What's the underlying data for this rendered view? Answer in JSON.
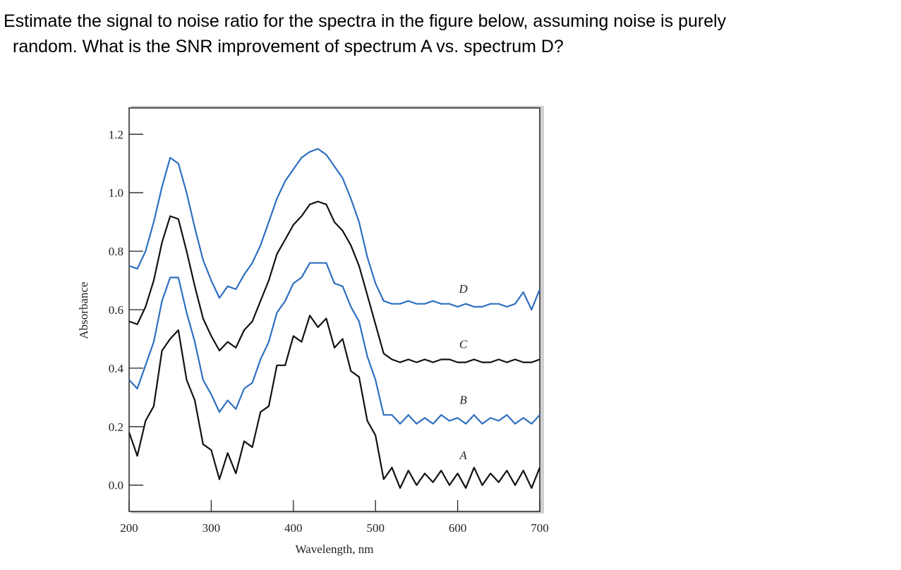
{
  "question": [
    "Estimate the signal to noise ratio for the spectra in the figure below, assuming noise is purely",
    "random. What is the SNR improvement of spectrum A vs. spectrum D?"
  ],
  "chart_data": {
    "type": "line",
    "xlabel": "Wavelength, nm",
    "ylabel": "Absorbance",
    "x": [
      200,
      210,
      220,
      230,
      240,
      250,
      260,
      270,
      280,
      290,
      300,
      310,
      320,
      330,
      340,
      350,
      360,
      370,
      380,
      390,
      400,
      410,
      420,
      430,
      440,
      450,
      460,
      470,
      480,
      490,
      500,
      510,
      520,
      530,
      540,
      550,
      560,
      570,
      580,
      590,
      600,
      610,
      620,
      630,
      640,
      650,
      660,
      670,
      680,
      690,
      700
    ],
    "xlim": [
      200,
      700
    ],
    "xticks": [
      200,
      300,
      400,
      500,
      600,
      700
    ],
    "ylim": [
      -0.09,
      1.29
    ],
    "yticks": [
      {
        "value": 0,
        "label": "0.0"
      },
      0.2,
      0.4,
      0.6,
      0.8,
      {
        "value": 1,
        "label": "1.0"
      },
      1.2
    ],
    "series": [
      {
        "name": "A",
        "color": "#111111",
        "values": [
          0.18,
          0.1,
          0.22,
          0.27,
          0.46,
          0.5,
          0.53,
          0.36,
          0.29,
          0.14,
          0.12,
          0.02,
          0.11,
          0.04,
          0.15,
          0.13,
          0.25,
          0.27,
          0.41,
          0.41,
          0.51,
          0.49,
          0.58,
          0.54,
          0.57,
          0.47,
          0.5,
          0.39,
          0.37,
          0.22,
          0.17,
          0.02,
          0.06,
          -0.01,
          0.05,
          0.0,
          0.04,
          0.01,
          0.05,
          0.0,
          0.04,
          -0.01,
          0.06,
          0.0,
          0.04,
          0.01,
          0.05,
          0.0,
          0.05,
          -0.01,
          0.06
        ]
      },
      {
        "name": "B",
        "color": "#2e6fc0",
        "values": [
          0.36,
          0.33,
          0.41,
          0.49,
          0.63,
          0.71,
          0.71,
          0.59,
          0.49,
          0.36,
          0.31,
          0.25,
          0.29,
          0.26,
          0.33,
          0.35,
          0.43,
          0.49,
          0.59,
          0.63,
          0.69,
          0.71,
          0.76,
          0.76,
          0.76,
          0.69,
          0.68,
          0.61,
          0.56,
          0.44,
          0.36,
          0.24,
          0.24,
          0.21,
          0.24,
          0.21,
          0.23,
          0.21,
          0.24,
          0.22,
          0.23,
          0.21,
          0.24,
          0.21,
          0.23,
          0.22,
          0.24,
          0.21,
          0.23,
          0.21,
          0.24
        ]
      },
      {
        "name": "C",
        "color": "#111111",
        "values": [
          0.56,
          0.55,
          0.61,
          0.7,
          0.83,
          0.92,
          0.91,
          0.8,
          0.68,
          0.57,
          0.51,
          0.46,
          0.49,
          0.47,
          0.53,
          0.56,
          0.63,
          0.7,
          0.79,
          0.84,
          0.89,
          0.92,
          0.96,
          0.97,
          0.96,
          0.9,
          0.87,
          0.82,
          0.75,
          0.65,
          0.55,
          0.45,
          0.43,
          0.42,
          0.43,
          0.42,
          0.43,
          0.42,
          0.43,
          0.43,
          0.42,
          0.42,
          0.43,
          0.42,
          0.42,
          0.43,
          0.42,
          0.43,
          0.42,
          0.42,
          0.43
        ]
      },
      {
        "name": "D",
        "color": "#2e6fc0",
        "values": [
          0.75,
          0.74,
          0.8,
          0.9,
          1.02,
          1.12,
          1.1,
          1.0,
          0.88,
          0.77,
          0.7,
          0.64,
          0.68,
          0.67,
          0.72,
          0.76,
          0.82,
          0.9,
          0.98,
          1.04,
          1.08,
          1.12,
          1.14,
          1.15,
          1.13,
          1.09,
          1.05,
          0.98,
          0.9,
          0.78,
          0.69,
          0.63,
          0.62,
          0.62,
          0.63,
          0.62,
          0.62,
          0.63,
          0.62,
          0.62,
          0.61,
          0.62,
          0.61,
          0.61,
          0.62,
          0.62,
          0.61,
          0.62,
          0.66,
          0.6,
          0.67
        ]
      }
    ]
  }
}
